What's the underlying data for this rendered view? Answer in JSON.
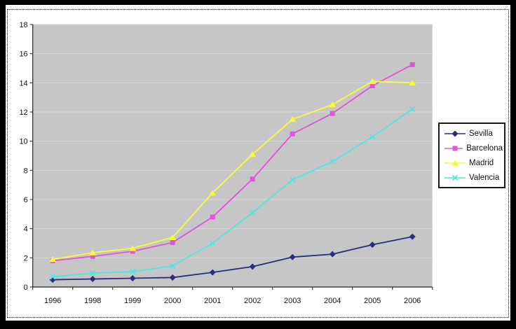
{
  "frame": {
    "outer_border_color": "#000000",
    "selection_border_style": "dotted",
    "background": "#ffffff"
  },
  "chart_data": {
    "type": "line",
    "title": "",
    "xlabel": "",
    "ylabel": "",
    "categories": [
      "1996",
      "1998",
      "1999",
      "2000",
      "2001",
      "2002",
      "2003",
      "2004",
      "2005",
      "2006"
    ],
    "y_ticks": [
      0,
      2,
      4,
      6,
      8,
      10,
      12,
      14,
      16,
      18
    ],
    "ylim": [
      0,
      18
    ],
    "grid": true,
    "plot_background": "#c6c6c6",
    "gridline_color": "#d6d6d6",
    "axis_color": "#404040",
    "tick_label_color": "#141414",
    "legend_position": "right",
    "series": [
      {
        "name": "Sevilla",
        "color": "#28307e",
        "marker": "diamond",
        "values": [
          0.5,
          0.55,
          0.6,
          0.65,
          1.0,
          1.4,
          2.05,
          2.25,
          2.9,
          3.45
        ]
      },
      {
        "name": "Barcelona",
        "color": "#e055dc",
        "marker": "square",
        "values": [
          1.8,
          2.1,
          2.45,
          3.05,
          4.8,
          7.4,
          10.5,
          11.9,
          13.8,
          15.25
        ]
      },
      {
        "name": "Madrid",
        "color": "#f8f83c",
        "marker": "triangle",
        "values": [
          1.9,
          2.35,
          2.65,
          3.4,
          6.45,
          9.1,
          11.5,
          12.5,
          14.1,
          14.0
        ]
      },
      {
        "name": "Valencia",
        "color": "#50e6e0",
        "marker": "x",
        "values": [
          0.7,
          0.95,
          1.05,
          1.45,
          3.0,
          5.1,
          7.35,
          8.6,
          10.3,
          12.2
        ]
      }
    ]
  }
}
